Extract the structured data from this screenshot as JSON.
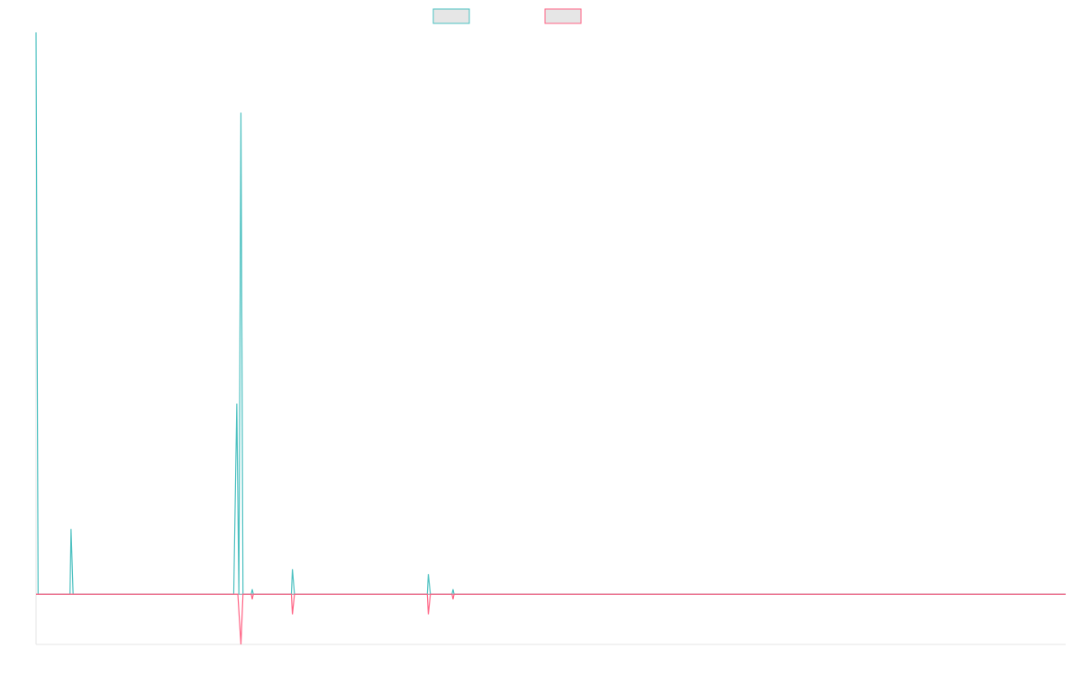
{
  "chart_data": {
    "type": "line",
    "title": "",
    "xlabel": "",
    "ylabel": "",
    "grid": false,
    "legend_position": "top-center",
    "x_range": [
      0,
      1000
    ],
    "ylim": [
      -10,
      112
    ],
    "baseline": 0,
    "series": [
      {
        "color": "#4bc0c0",
        "fill": "#e6e6e6",
        "points": [
          [
            0,
            112
          ],
          [
            2,
            0
          ],
          [
            33,
            0
          ],
          [
            34,
            13
          ],
          [
            36,
            0
          ],
          [
            192,
            0
          ],
          [
            195,
            38
          ],
          [
            197,
            0
          ],
          [
            199,
            96
          ],
          [
            201,
            0
          ],
          [
            209,
            0
          ],
          [
            210,
            1
          ],
          [
            211,
            0
          ],
          [
            248,
            0
          ],
          [
            249,
            5
          ],
          [
            251,
            0
          ],
          [
            380,
            0
          ],
          [
            381,
            4
          ],
          [
            383,
            0
          ],
          [
            404,
            0
          ],
          [
            405,
            1
          ],
          [
            406,
            0
          ],
          [
            1000,
            0
          ]
        ]
      },
      {
        "color": "#ff6384",
        "fill": "#e6e6e6",
        "points": [
          [
            0,
            0
          ],
          [
            196,
            0
          ],
          [
            199,
            -10
          ],
          [
            201,
            0
          ],
          [
            209,
            0
          ],
          [
            210,
            -1
          ],
          [
            211,
            0
          ],
          [
            248,
            0
          ],
          [
            249,
            -4
          ],
          [
            251,
            0
          ],
          [
            380,
            0
          ],
          [
            381,
            -4
          ],
          [
            383,
            0
          ],
          [
            404,
            0
          ],
          [
            405,
            -1
          ],
          [
            406,
            0
          ],
          [
            1000,
            0
          ]
        ]
      }
    ]
  }
}
